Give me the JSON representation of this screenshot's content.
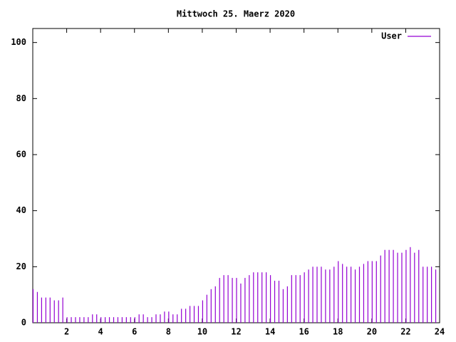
{
  "chart_data": {
    "type": "impulses",
    "title": "Mittwoch 25. Maerz 2020",
    "x": [
      0,
      0.25,
      0.5,
      0.75,
      1,
      1.25,
      1.5,
      1.75,
      2,
      2.25,
      2.5,
      2.75,
      3,
      3.25,
      3.5,
      3.75,
      4,
      4.25,
      4.5,
      4.75,
      5,
      5.25,
      5.5,
      5.75,
      6,
      6.25,
      6.5,
      6.75,
      7,
      7.25,
      7.5,
      7.75,
      8,
      8.25,
      8.5,
      8.75,
      9,
      9.25,
      9.5,
      9.75,
      10,
      10.25,
      10.5,
      10.75,
      11,
      11.25,
      11.5,
      11.75,
      12,
      12.25,
      12.5,
      12.75,
      13,
      13.25,
      13.5,
      13.75,
      14,
      14.25,
      14.5,
      14.75,
      15,
      15.25,
      15.5,
      15.75,
      16,
      16.25,
      16.5,
      16.75,
      17,
      17.25,
      17.5,
      17.75,
      18,
      18.25,
      18.5,
      18.75,
      19,
      19.25,
      19.5,
      19.75,
      20,
      20.25,
      20.5,
      20.75,
      21,
      21.25,
      21.5,
      21.75,
      22,
      22.25,
      22.5,
      22.75,
      23,
      23.25,
      23.5,
      23.75
    ],
    "series": [
      {
        "name": "User",
        "color": "#9400d3",
        "values": [
          12,
          11,
          9,
          9,
          9,
          8,
          8,
          9,
          2,
          2,
          2,
          2,
          2,
          2,
          3,
          3,
          2,
          2,
          2,
          2,
          2,
          2,
          2,
          2,
          2,
          3,
          3,
          2,
          2,
          3,
          3,
          4,
          4,
          3,
          3,
          5,
          5,
          6,
          6,
          6,
          8,
          10,
          12,
          13,
          16,
          17,
          17,
          16,
          16,
          14,
          16,
          17,
          18,
          18,
          18,
          18,
          17,
          15,
          15,
          12,
          13,
          17,
          17,
          17,
          18,
          19,
          20,
          20,
          20,
          19,
          19,
          20,
          22,
          21,
          20,
          20,
          19,
          20,
          21,
          22,
          22,
          22,
          24,
          26,
          26,
          26,
          25,
          25,
          26,
          27,
          25,
          26,
          20,
          20,
          20,
          19
        ]
      }
    ],
    "xlim": [
      0,
      24
    ],
    "xticks": [
      2,
      4,
      6,
      8,
      10,
      12,
      14,
      16,
      18,
      20,
      22,
      24
    ],
    "ylim": [
      0,
      105
    ],
    "yticks": [
      0,
      20,
      40,
      60,
      80,
      100
    ],
    "legend": "top-right"
  }
}
